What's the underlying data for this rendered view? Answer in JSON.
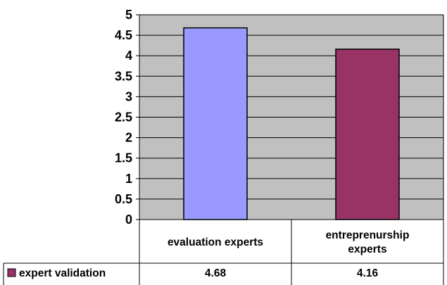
{
  "chart_data": {
    "type": "bar",
    "categories": [
      "evaluation experts",
      "entreprenurship experts"
    ],
    "category_lines": [
      [
        "evaluation experts"
      ],
      [
        "entreprenurship",
        "experts"
      ]
    ],
    "series": [
      {
        "name": "expert validation",
        "values": [
          4.68,
          4.16
        ],
        "color": "#9999ff",
        "colors": [
          "#9999ff",
          "#993366"
        ]
      }
    ],
    "value_labels": [
      "4.68",
      "4.16"
    ],
    "ylim": [
      0,
      5
    ],
    "yticks": [
      "0",
      "0.5",
      "1",
      "1.5",
      "2",
      "2.5",
      "3",
      "3.5",
      "4",
      "4.5",
      "5"
    ],
    "xlabel": "",
    "ylabel": "",
    "title": "",
    "plot_background": "#c0c0c0",
    "grid": true,
    "legend_placement": "data-table"
  }
}
